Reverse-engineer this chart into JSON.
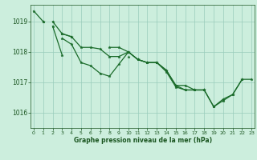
{
  "background_color": "#cceedd",
  "plot_bg_color": "#cceedd",
  "grid_color": "#99ccbb",
  "line_color": "#1a6b2a",
  "marker_color": "#1a6b2a",
  "xlabel": "Graphe pression niveau de la mer (hPa)",
  "xlabel_color": "#1a5520",
  "tick_color": "#1a5520",
  "ylim": [
    1015.5,
    1019.55
  ],
  "xlim": [
    -0.3,
    23.3
  ],
  "yticks": [
    1016,
    1017,
    1018,
    1019
  ],
  "xticks": [
    0,
    1,
    2,
    3,
    4,
    5,
    6,
    7,
    8,
    9,
    10,
    11,
    12,
    13,
    14,
    15,
    16,
    17,
    18,
    19,
    20,
    21,
    22,
    23
  ],
  "series": [
    [
      1019.35,
      1019.0,
      null,
      1018.45,
      1018.25,
      1017.65,
      1017.55,
      1017.3,
      1017.2,
      1017.6,
      1018.0,
      1017.75,
      1017.65,
      1017.65,
      1017.4,
      1016.9,
      1016.75,
      1016.75,
      1016.75,
      1016.2,
      1016.45,
      1016.6,
      1017.1,
      null
    ],
    [
      null,
      1019.0,
      null,
      1018.6,
      1018.5,
      null,
      null,
      null,
      1018.15,
      1018.15,
      1018.0,
      1017.75,
      1017.65,
      1017.65,
      1017.4,
      1016.9,
      1016.9,
      1016.75,
      1016.75,
      null,
      null,
      null,
      null,
      null
    ],
    [
      null,
      null,
      1019.0,
      1018.6,
      1018.5,
      1018.15,
      1018.15,
      1018.1,
      1017.85,
      1017.85,
      1018.0,
      1017.75,
      1017.65,
      1017.65,
      1017.35,
      1016.85,
      1016.75,
      1016.75,
      1016.75,
      1016.2,
      1016.4,
      1016.6,
      1017.1,
      1017.1
    ],
    [
      null,
      null,
      1018.85,
      1017.9,
      null,
      null,
      null,
      null,
      null,
      null,
      1017.85,
      null,
      null,
      null,
      null,
      null,
      null,
      null,
      null,
      null,
      null,
      null,
      null,
      null
    ]
  ],
  "marker_size": 2.5,
  "linewidth": 0.9,
  "figsize": [
    3.2,
    2.0
  ],
  "dpi": 100
}
